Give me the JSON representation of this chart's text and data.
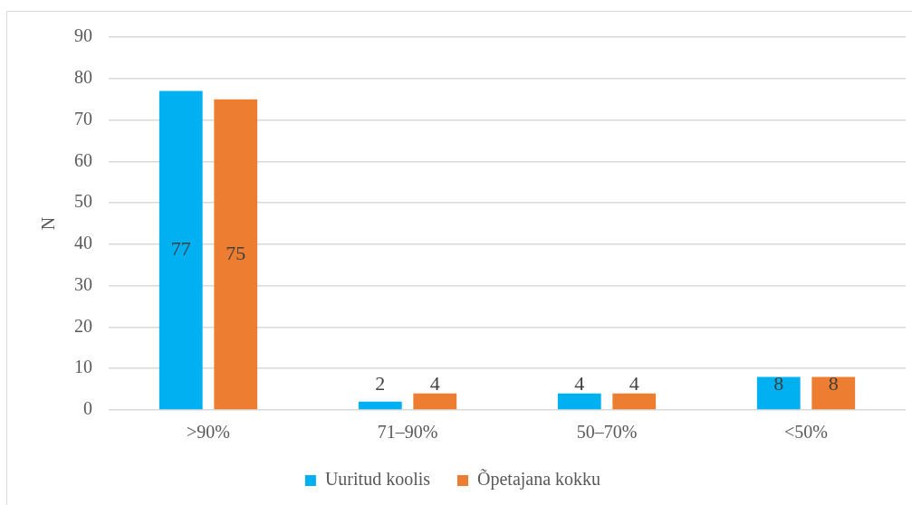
{
  "chart_data": {
    "type": "bar",
    "ylabel": "N",
    "categories": [
      ">90%",
      "71–90%",
      "50–70%",
      "<50%"
    ],
    "series": [
      {
        "name": "Uuritud koolis",
        "color": "#00b0f0",
        "values": [
          77,
          2,
          4,
          8
        ]
      },
      {
        "name": "Õpetajana kokku",
        "color": "#ed7d31",
        "values": [
          75,
          4,
          4,
          8
        ]
      }
    ],
    "ylim": [
      0,
      90
    ],
    "yticks": [
      0,
      10,
      20,
      30,
      40,
      50,
      60,
      70,
      80,
      90
    ],
    "grid": "y",
    "legend": "bottom",
    "data_labels": true
  }
}
